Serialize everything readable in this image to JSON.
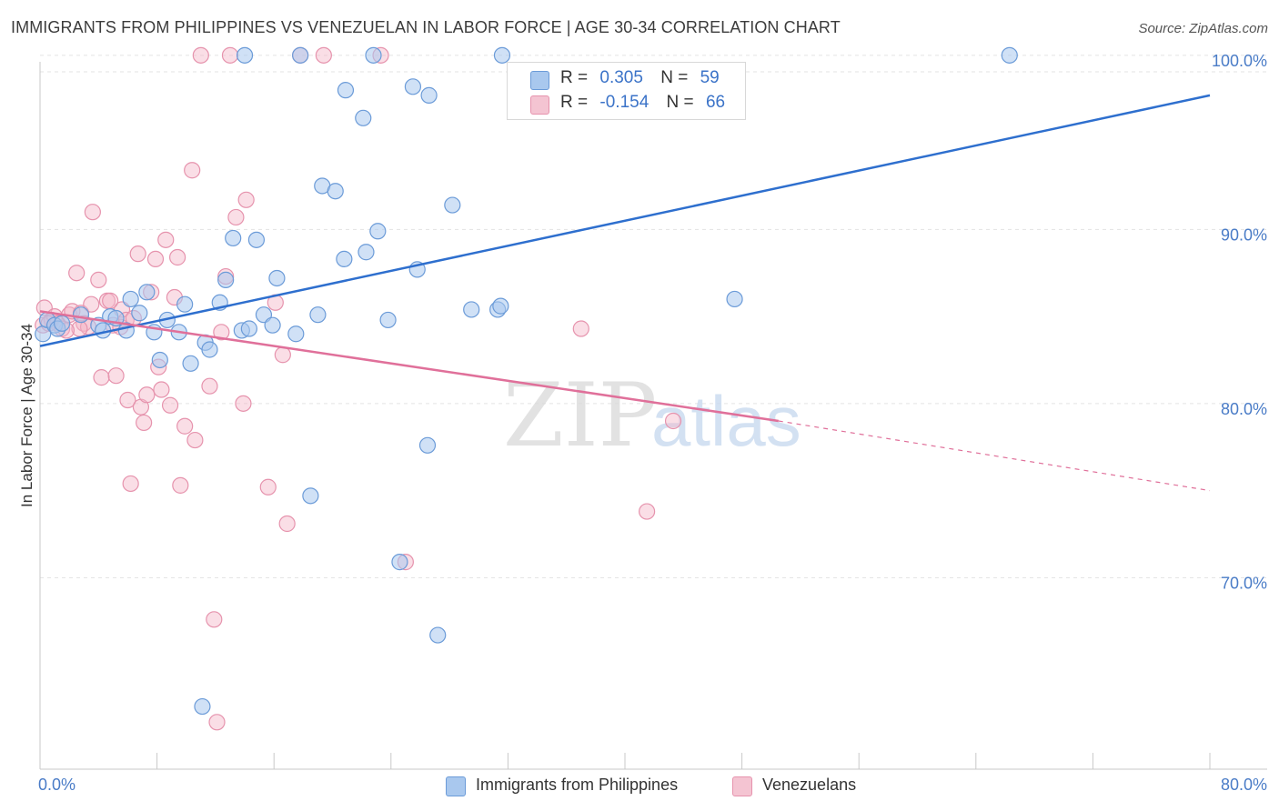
{
  "header": {
    "title": "IMMIGRANTS FROM PHILIPPINES VS VENEZUELAN IN LABOR FORCE | AGE 30-34 CORRELATION CHART",
    "source": "Source: ZipAtlas.com"
  },
  "watermark": {
    "zip": "ZIP",
    "atlas": "atlas"
  },
  "legend_top": {
    "rows": [
      {
        "r_label": "R =",
        "r_value": "0.305",
        "n_label": "N =",
        "n_value": "59"
      },
      {
        "r_label": "R =",
        "r_value": "-0.154",
        "n_label": "N =",
        "n_value": "66"
      }
    ]
  },
  "legend_bottom": {
    "items": [
      "Immigrants from Philippines",
      "Venezuelans"
    ]
  },
  "colors": {
    "blue_fill": "#a9c8ee",
    "blue_stroke": "#6b9bd8",
    "blue_line": "#2e6fce",
    "pink_fill": "#f4b6c8",
    "pink_stroke": "#e693ad",
    "pink_line": "#e0709a",
    "tick_text": "#4a7cc7",
    "grid": "#e3e3e3"
  },
  "chart_data": {
    "type": "scatter",
    "title": "IMMIGRANTS FROM PHILIPPINES VS VENEZUELAN IN LABOR FORCE | AGE 30-34 CORRELATION CHART",
    "xlabel": "",
    "ylabel": "In Labor Force | Age 30-34",
    "xlim": [
      0,
      80
    ],
    "ylim": [
      60,
      103.5
    ],
    "x_tick_labels": [
      {
        "value": 0,
        "label": "0.0%"
      },
      {
        "value": 80,
        "label": "80.0%"
      }
    ],
    "y_tick_labels": [
      {
        "value": 70,
        "label": "70.0%"
      },
      {
        "value": 80,
        "label": "80.0%"
      },
      {
        "value": 90,
        "label": "90.0%"
      },
      {
        "value": 100,
        "label": "100.0%"
      }
    ],
    "grid": true,
    "legend_position": "top-center",
    "series": [
      {
        "name": "Immigrants from Philippines",
        "r": 0.305,
        "n": 59,
        "trend": {
          "x0": 0,
          "y0": 83.3,
          "x1": 80,
          "y1": 97.7
        },
        "points": [
          [
            0.2,
            84.0
          ],
          [
            0.5,
            84.8
          ],
          [
            1.0,
            84.5
          ],
          [
            1.2,
            84.3
          ],
          [
            1.5,
            84.6
          ],
          [
            2.8,
            85.1
          ],
          [
            4.0,
            84.5
          ],
          [
            4.3,
            84.2
          ],
          [
            4.8,
            85.0
          ],
          [
            5.2,
            84.9
          ],
          [
            5.9,
            84.2
          ],
          [
            6.2,
            86.0
          ],
          [
            6.8,
            85.2
          ],
          [
            7.3,
            86.4
          ],
          [
            7.8,
            84.1
          ],
          [
            8.2,
            82.5
          ],
          [
            8.7,
            84.8
          ],
          [
            9.5,
            84.1
          ],
          [
            9.9,
            85.7
          ],
          [
            10.3,
            82.3
          ],
          [
            11.3,
            83.5
          ],
          [
            11.6,
            83.1
          ],
          [
            12.3,
            85.8
          ],
          [
            12.7,
            87.1
          ],
          [
            13.2,
            89.5
          ],
          [
            13.8,
            84.2
          ],
          [
            14.3,
            84.3
          ],
          [
            14.8,
            89.4
          ],
          [
            15.3,
            85.1
          ],
          [
            15.9,
            84.5
          ],
          [
            16.2,
            87.2
          ],
          [
            17.5,
            84.0
          ],
          [
            18.5,
            74.7
          ],
          [
            19.0,
            85.1
          ],
          [
            19.3,
            92.5
          ],
          [
            20.2,
            92.2
          ],
          [
            20.8,
            88.3
          ],
          [
            20.9,
            98.0
          ],
          [
            22.1,
            96.4
          ],
          [
            22.3,
            88.7
          ],
          [
            23.1,
            89.9
          ],
          [
            23.8,
            84.8
          ],
          [
            24.6,
            70.9
          ],
          [
            25.5,
            98.2
          ],
          [
            25.8,
            87.7
          ],
          [
            26.5,
            77.6
          ],
          [
            26.6,
            97.7
          ],
          [
            27.2,
            66.7
          ],
          [
            28.2,
            91.4
          ],
          [
            29.5,
            85.4
          ],
          [
            31.3,
            85.4
          ],
          [
            31.5,
            85.6
          ],
          [
            17.8,
            100.0
          ],
          [
            22.8,
            100.0
          ],
          [
            31.6,
            100.0
          ],
          [
            11.1,
            62.6
          ],
          [
            14.0,
            100.0
          ],
          [
            47.5,
            86.0
          ],
          [
            66.3,
            100.0
          ]
        ]
      },
      {
        "name": "Venezuelans",
        "r": -0.154,
        "n": 66,
        "trend": {
          "x0": 0,
          "y0": 85.3,
          "x1": 50.5,
          "y1": 79.0,
          "dash_x1": 80,
          "dash_y1": 75.0
        },
        "points": [
          [
            0.2,
            84.5
          ],
          [
            0.3,
            85.5
          ],
          [
            0.8,
            84.8
          ],
          [
            1.0,
            85.0
          ],
          [
            1.2,
            84.6
          ],
          [
            1.5,
            84.3
          ],
          [
            2.0,
            85.1
          ],
          [
            2.2,
            85.3
          ],
          [
            2.5,
            87.5
          ],
          [
            2.8,
            85.2
          ],
          [
            3.0,
            84.6
          ],
          [
            3.3,
            84.4
          ],
          [
            3.5,
            85.7
          ],
          [
            3.6,
            91.0
          ],
          [
            4.0,
            87.1
          ],
          [
            4.2,
            81.5
          ],
          [
            4.6,
            85.9
          ],
          [
            5.0,
            84.5
          ],
          [
            5.2,
            81.6
          ],
          [
            5.5,
            84.4
          ],
          [
            5.6,
            85.4
          ],
          [
            5.9,
            84.8
          ],
          [
            6.0,
            80.2
          ],
          [
            6.2,
            75.4
          ],
          [
            6.7,
            88.6
          ],
          [
            6.9,
            79.8
          ],
          [
            7.1,
            78.9
          ],
          [
            7.3,
            80.5
          ],
          [
            7.6,
            86.4
          ],
          [
            7.9,
            88.3
          ],
          [
            8.1,
            82.1
          ],
          [
            8.3,
            80.8
          ],
          [
            8.6,
            89.4
          ],
          [
            8.9,
            79.9
          ],
          [
            9.2,
            86.1
          ],
          [
            9.4,
            88.4
          ],
          [
            9.6,
            75.3
          ],
          [
            9.9,
            78.7
          ],
          [
            10.4,
            93.4
          ],
          [
            10.6,
            77.9
          ],
          [
            11.0,
            100.0
          ],
          [
            11.6,
            81.0
          ],
          [
            11.9,
            67.6
          ],
          [
            12.1,
            61.7
          ],
          [
            12.4,
            84.1
          ],
          [
            12.7,
            87.3
          ],
          [
            13.4,
            90.7
          ],
          [
            13.9,
            80.0
          ],
          [
            14.1,
            91.7
          ],
          [
            15.6,
            75.2
          ],
          [
            16.1,
            85.8
          ],
          [
            16.6,
            82.8
          ],
          [
            16.9,
            73.1
          ],
          [
            17.8,
            100.0
          ],
          [
            19.4,
            100.0
          ],
          [
            23.3,
            100.0
          ],
          [
            25.0,
            70.9
          ],
          [
            37.0,
            84.3
          ],
          [
            41.5,
            73.8
          ],
          [
            43.3,
            79.0
          ],
          [
            13.0,
            100.0
          ],
          [
            2.7,
            84.3
          ],
          [
            4.8,
            85.9
          ],
          [
            6.4,
            84.9
          ],
          [
            1.8,
            84.2
          ],
          [
            0.6,
            84.6
          ]
        ]
      }
    ]
  }
}
